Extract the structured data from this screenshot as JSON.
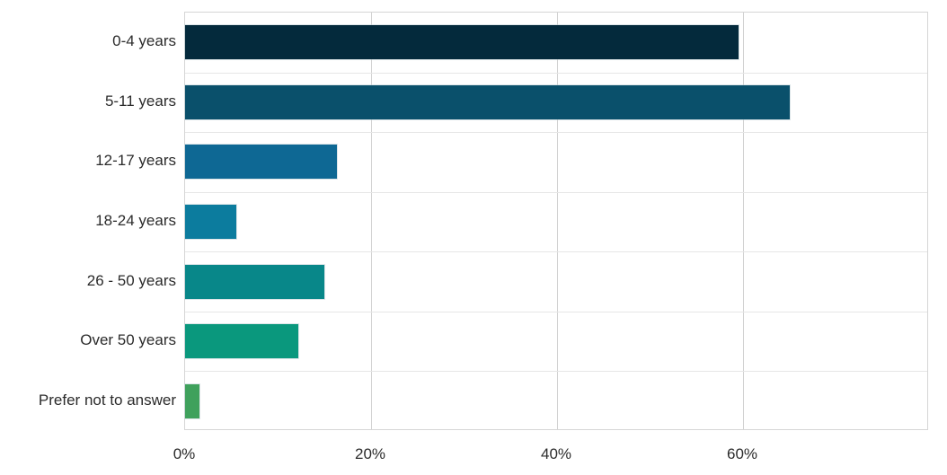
{
  "chart_data": {
    "type": "bar",
    "orientation": "horizontal",
    "title": "",
    "xlabel": "",
    "ylabel": "",
    "categories": [
      "0-4 years",
      "5-11 years",
      "12-17 years",
      "18-24 years",
      "26 - 50 years",
      "Over 50 years",
      "Prefer not to answer"
    ],
    "values": [
      59.5,
      65,
      16.3,
      5.5,
      15,
      12.2,
      1.5
    ],
    "unit": "%",
    "bar_colors": [
      "#042a3c",
      "#0a506b",
      "#0e6894",
      "#0c7c9e",
      "#088789",
      "#0a987d",
      "#3fa15c"
    ],
    "xlim": [
      0,
      80
    ],
    "x_ticks": [
      {
        "value": 0,
        "label": "0%"
      },
      {
        "value": 20,
        "label": "20%"
      },
      {
        "value": 40,
        "label": "40%"
      },
      {
        "value": 60,
        "label": "60%"
      }
    ],
    "grid": true,
    "legend": "none"
  },
  "colors": {
    "background": "#ffffff",
    "plot_border": "#d6d6d6",
    "vertical_gridline": "#d2d2d2",
    "horizontal_gridline": "#e6e6e6",
    "text": "#2b2b2b"
  }
}
